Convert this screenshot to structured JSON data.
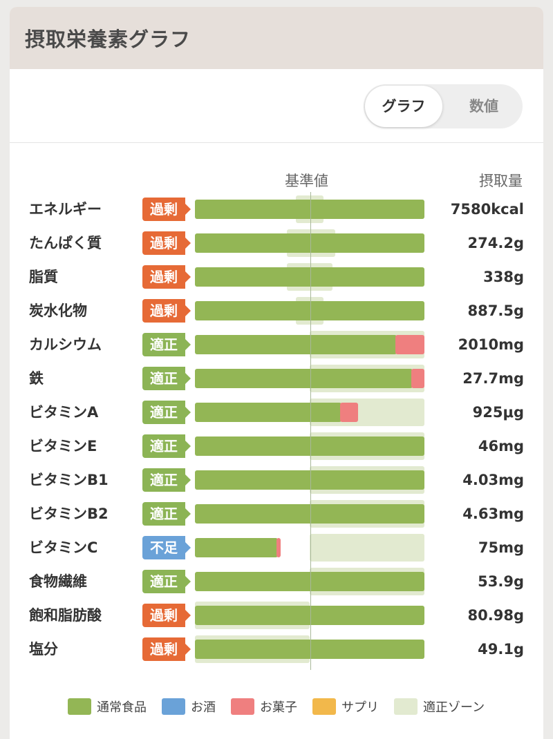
{
  "header": {
    "title": "摂取栄養素グラフ"
  },
  "toggle": {
    "graph_label": "グラフ",
    "number_label": "数値"
  },
  "columns": {
    "reference": "基準値",
    "intake": "摂取量"
  },
  "colors": {
    "normal": "#93b655",
    "alcohol": "#6aa2d8",
    "snack": "#ef7f7f",
    "supplement": "#f2b84b",
    "zone": "#e2ead0"
  },
  "nutrients": [
    {
      "name": "エネルギー",
      "status": "過剰",
      "value": "7580kcal",
      "normal": 1.0,
      "snack": 0,
      "zone": [
        0.44,
        0.56
      ]
    },
    {
      "name": "たんぱく質",
      "status": "過剰",
      "value": "274.2g",
      "normal": 1.0,
      "snack": 0,
      "zone": [
        0.4,
        0.61
      ]
    },
    {
      "name": "脂質",
      "status": "過剰",
      "value": "338g",
      "normal": 1.0,
      "snack": 0,
      "zone": [
        0.4,
        0.6
      ]
    },
    {
      "name": "炭水化物",
      "status": "過剰",
      "value": "887.5g",
      "normal": 1.0,
      "snack": 0,
      "zone": [
        0.44,
        0.56
      ]
    },
    {
      "name": "カルシウム",
      "status": "適正",
      "value": "2010mg",
      "normal": 0.88,
      "snack": 0.12,
      "zone": [
        0.5,
        1.0
      ]
    },
    {
      "name": "鉄",
      "status": "適正",
      "value": "27.7mg",
      "normal": 0.95,
      "snack": 0.05,
      "zone": [
        0.5,
        1.0
      ]
    },
    {
      "name": "ビタミンA",
      "status": "適正",
      "value": "925μg",
      "normal": 0.64,
      "snack": 0.07,
      "zone": [
        0.5,
        1.0
      ]
    },
    {
      "name": "ビタミンE",
      "status": "適正",
      "value": "46mg",
      "normal": 1.0,
      "snack": 0,
      "zone": [
        0.5,
        1.0
      ]
    },
    {
      "name": "ビタミンB1",
      "status": "適正",
      "value": "4.03mg",
      "normal": 1.0,
      "snack": 0,
      "zone": [
        0.5,
        1.0
      ]
    },
    {
      "name": "ビタミンB2",
      "status": "適正",
      "value": "4.63mg",
      "normal": 1.0,
      "snack": 0,
      "zone": [
        0.5,
        1.0
      ]
    },
    {
      "name": "ビタミンC",
      "status": "不足",
      "value": "75mg",
      "normal": 0.36,
      "snack": 0.015,
      "zone": [
        0.5,
        1.0
      ]
    },
    {
      "name": "食物繊維",
      "status": "適正",
      "value": "53.9g",
      "normal": 1.0,
      "snack": 0,
      "zone": [
        0.5,
        1.0
      ]
    },
    {
      "name": "飽和脂肪酸",
      "status": "過剰",
      "value": "80.98g",
      "normal": 1.0,
      "snack": 0,
      "zone": [
        0.0,
        0.5
      ]
    },
    {
      "name": "塩分",
      "status": "過剰",
      "value": "49.1g",
      "normal": 1.0,
      "snack": 0,
      "zone": [
        0.0,
        0.5
      ]
    }
  ],
  "legend": [
    {
      "label": "通常食品",
      "color": "#93b655"
    },
    {
      "label": "お酒",
      "color": "#6aa2d8"
    },
    {
      "label": "お菓子",
      "color": "#ef7f7f"
    },
    {
      "label": "サプリ",
      "color": "#f2b84b"
    },
    {
      "label": "適正ゾーン",
      "color": "#e2ead0"
    }
  ]
}
